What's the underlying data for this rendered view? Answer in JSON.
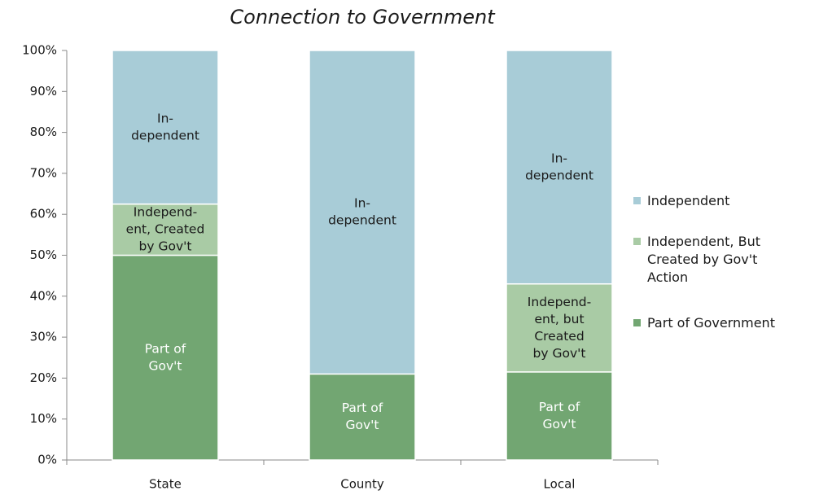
{
  "chart_data": {
    "type": "stacked_bar",
    "title": "Connection to Government",
    "categories": [
      "State",
      "County",
      "Local"
    ],
    "series": [
      {
        "name": "Part of Government",
        "color": "#72a672",
        "label_color": "#ffffff",
        "values": [
          50,
          21,
          21.5
        ],
        "labels": [
          [
            "Part of",
            "Gov't"
          ],
          [
            "Part of",
            "Gov't"
          ],
          [
            "Part  of",
            "Gov't"
          ]
        ]
      },
      {
        "name": "Independent, But Created by Gov't Action",
        "color": "#a9cba5",
        "label_color": "#1a1a1a",
        "values": [
          12.5,
          0,
          21.5
        ],
        "labels": [
          [
            "Independ-",
            "ent, Created",
            "by Gov't"
          ],
          null,
          [
            "Independ-",
            "ent, but",
            "Created",
            "by Gov't"
          ]
        ]
      },
      {
        "name": "Independent",
        "color": "#a8ccd7",
        "label_color": "#1a1a1a",
        "values": [
          37.5,
          79,
          57
        ],
        "labels": [
          [
            "In-",
            "dependent"
          ],
          [
            "In-",
            "dependent"
          ],
          [
            "In-",
            "dependent"
          ]
        ]
      }
    ],
    "ylim": [
      0,
      100
    ],
    "yticks": [
      {
        "value": 0,
        "label": "0%"
      },
      {
        "value": 10,
        "label": "10%"
      },
      {
        "value": 20,
        "label": "20%"
      },
      {
        "value": 30,
        "label": "30%"
      },
      {
        "value": 40,
        "label": "40%"
      },
      {
        "value": 50,
        "label": "50%"
      },
      {
        "value": 60,
        "label": "60%"
      },
      {
        "value": 70,
        "label": "70%"
      },
      {
        "value": 80,
        "label": "80%"
      },
      {
        "value": 90,
        "label": "90%"
      },
      {
        "value": 100,
        "label": "100%"
      }
    ],
    "legend": "right"
  }
}
